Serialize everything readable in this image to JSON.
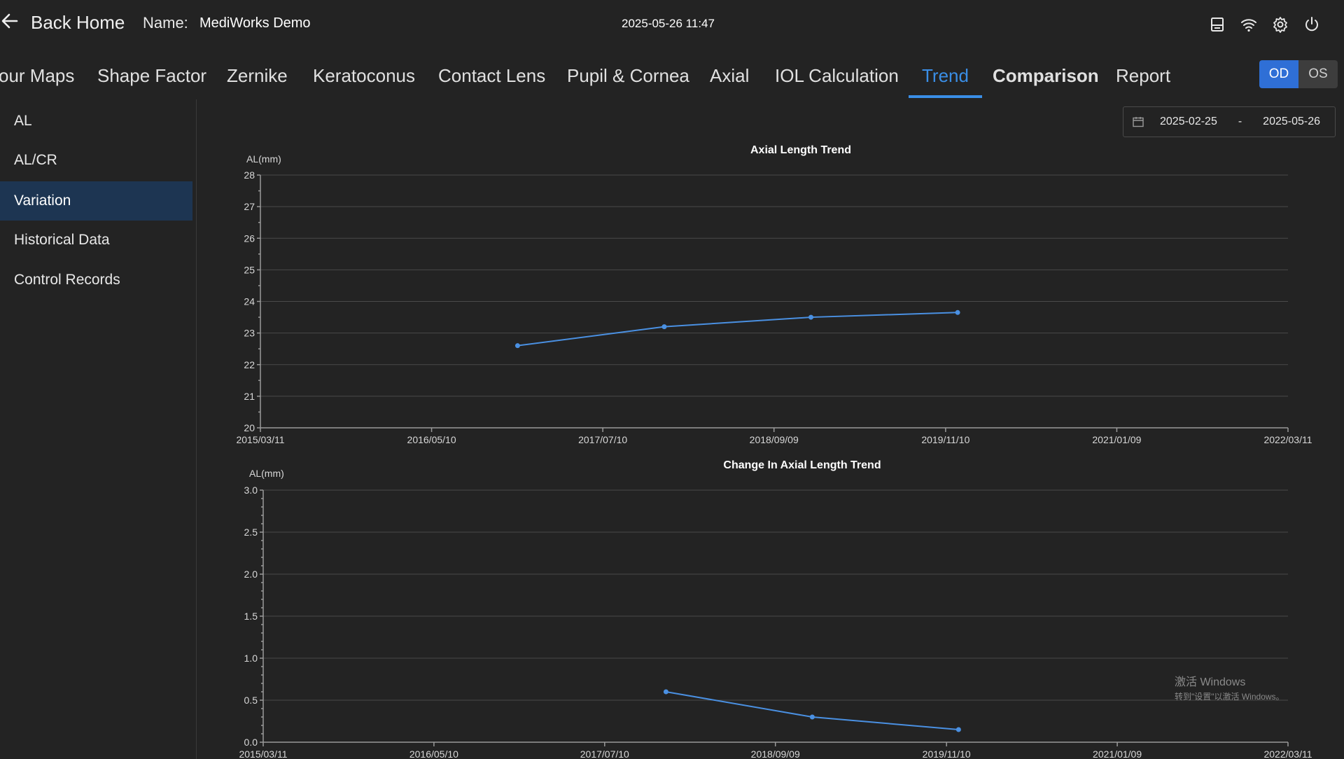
{
  "header": {
    "back_label": "Back Home",
    "name_label": "Name:",
    "name_value": "MediWorks Demo",
    "datetime": "2025-05-26 11:47",
    "icons": [
      "storage-icon",
      "wifi-icon",
      "gear-icon",
      "power-icon"
    ]
  },
  "tabs": [
    {
      "label": "our Maps"
    },
    {
      "label": "Shape Factor"
    },
    {
      "label": "Zernike"
    },
    {
      "label": "Keratoconus"
    },
    {
      "label": "Contact Lens"
    },
    {
      "label": "Pupil & Cornea"
    },
    {
      "label": "Axial"
    },
    {
      "label": "IOL Calculation"
    },
    {
      "label": "Trend",
      "active": true
    },
    {
      "label": "Comparison"
    },
    {
      "label": "Report"
    }
  ],
  "eye_toggle": {
    "od": "OD",
    "os": "OS",
    "selected": "OD"
  },
  "sidebar": {
    "items": [
      {
        "label": "AL"
      },
      {
        "label": "AL/CR"
      },
      {
        "label": "Variation",
        "active": true
      },
      {
        "label": "Historical Data"
      },
      {
        "label": "Control Records"
      }
    ]
  },
  "date_range": {
    "start": "2025-02-25",
    "separator": "-",
    "end": "2025-05-26"
  },
  "colors": {
    "accent": "#3a8ee6",
    "series": "#4a90e2",
    "background": "#232323",
    "sidebar_active": "#1d3552"
  },
  "chart_data": [
    {
      "type": "line",
      "title": "Axial Length Trend",
      "ylabel": "AL(mm)",
      "xlabel": "",
      "x_ticks": [
        "2015/03/11",
        "2016/05/10",
        "2017/07/10",
        "2018/09/09",
        "2019/11/10",
        "2021/01/09",
        "2022/03/11"
      ],
      "xlim": [
        "2015/03/11",
        "2022/03/11"
      ],
      "ylim": [
        20,
        28
      ],
      "y_ticks": [
        "20",
        "21",
        "22",
        "23",
        "24",
        "25",
        "26",
        "27",
        "28"
      ],
      "grid": true,
      "series": [
        {
          "x": [
            "2016/12/10",
            "2017/12/10",
            "2018/12/10",
            "2019/12/10"
          ],
          "y": [
            22.6,
            23.2,
            23.5,
            23.65
          ]
        }
      ]
    },
    {
      "type": "line",
      "title": "Change In Axial Length Trend",
      "ylabel": "AL(mm)",
      "xlabel": "",
      "x_ticks": [
        "2015/03/11",
        "2016/05/10",
        "2017/07/10",
        "2018/09/09",
        "2019/11/10",
        "2021/01/09",
        "2022/03/11"
      ],
      "xlim": [
        "2015/03/11",
        "2022/03/11"
      ],
      "ylim": [
        0,
        3.0
      ],
      "y_ticks": [
        "0.0",
        "0.5",
        "1.0",
        "1.5",
        "2.0",
        "2.5",
        "3.0"
      ],
      "grid": true,
      "series": [
        {
          "x": [
            "2017/12/10",
            "2018/12/10",
            "2019/12/10"
          ],
          "y": [
            0.6,
            0.3,
            0.15
          ]
        }
      ]
    }
  ],
  "watermark": {
    "line1": "激活 Windows",
    "line2": "转到\"设置\"以激活 Windows。"
  }
}
